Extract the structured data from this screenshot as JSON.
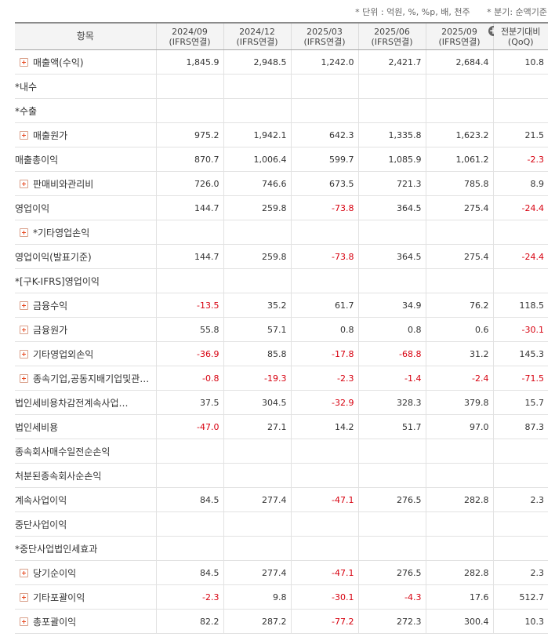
{
  "notes": {
    "unit": "* 단위 : 억원, %, %p, 배, 천주",
    "quarter": "* 분기: 순액기준"
  },
  "header": {
    "item": "항목",
    "columns": [
      {
        "period": "2024/09",
        "basis": "(IFRS연결)"
      },
      {
        "period": "2024/12",
        "basis": "(IFRS연결)"
      },
      {
        "period": "2025/03",
        "basis": "(IFRS연결)"
      },
      {
        "period": "2025/06",
        "basis": "(IFRS연결)"
      },
      {
        "period": "2025/09",
        "basis": "(IFRS연결)"
      }
    ],
    "last": {
      "line1": "전분기대비",
      "line2": "(QoQ)"
    },
    "expand_symbol": "+"
  },
  "rows": [
    {
      "label": "매출액(수익)",
      "expand": true,
      "indent": false,
      "values": [
        "1,845.9",
        "2,948.5",
        "1,242.0",
        "2,421.7",
        "2,684.4",
        "10.8"
      ]
    },
    {
      "label": "*내수",
      "expand": false,
      "indent": true,
      "values": [
        "",
        "",
        "",
        "",
        "",
        ""
      ]
    },
    {
      "label": "*수출",
      "expand": false,
      "indent": true,
      "values": [
        "",
        "",
        "",
        "",
        "",
        ""
      ]
    },
    {
      "label": "매출원가",
      "expand": true,
      "indent": false,
      "values": [
        "975.2",
        "1,942.1",
        "642.3",
        "1,335.8",
        "1,623.2",
        "21.5"
      ]
    },
    {
      "label": "매출총이익",
      "expand": false,
      "indent": true,
      "values": [
        "870.7",
        "1,006.4",
        "599.7",
        "1,085.9",
        "1,061.2",
        "-2.3"
      ]
    },
    {
      "label": "판매비와관리비",
      "expand": true,
      "indent": false,
      "values": [
        "726.0",
        "746.6",
        "673.5",
        "721.3",
        "785.8",
        "8.9"
      ]
    },
    {
      "label": "영업이익",
      "expand": false,
      "indent": true,
      "values": [
        "144.7",
        "259.8",
        "-73.8",
        "364.5",
        "275.4",
        "-24.4"
      ]
    },
    {
      "label": "*기타영업손익",
      "expand": true,
      "indent": false,
      "values": [
        "",
        "",
        "",
        "",
        "",
        ""
      ]
    },
    {
      "label": "영업이익(발표기준)",
      "expand": false,
      "indent": true,
      "values": [
        "144.7",
        "259.8",
        "-73.8",
        "364.5",
        "275.4",
        "-24.4"
      ]
    },
    {
      "label": "*[구K-IFRS]영업이익",
      "expand": false,
      "indent": true,
      "values": [
        "",
        "",
        "",
        "",
        "",
        ""
      ]
    },
    {
      "label": "금융수익",
      "expand": true,
      "indent": false,
      "values": [
        "-13.5",
        "35.2",
        "61.7",
        "34.9",
        "76.2",
        "118.5"
      ]
    },
    {
      "label": "금융원가",
      "expand": true,
      "indent": false,
      "values": [
        "55.8",
        "57.1",
        "0.8",
        "0.8",
        "0.6",
        "-30.1"
      ]
    },
    {
      "label": "기타영업외손익",
      "expand": true,
      "indent": false,
      "values": [
        "-36.9",
        "85.8",
        "-17.8",
        "-68.8",
        "31.2",
        "145.3"
      ]
    },
    {
      "label": "종속기업,공동지배기업및관…",
      "expand": true,
      "indent": false,
      "values": [
        "-0.8",
        "-19.3",
        "-2.3",
        "-1.4",
        "-2.4",
        "-71.5"
      ]
    },
    {
      "label": "법인세비용차감전계속사업…",
      "expand": false,
      "indent": true,
      "values": [
        "37.5",
        "304.5",
        "-32.9",
        "328.3",
        "379.8",
        "15.7"
      ]
    },
    {
      "label": "법인세비용",
      "expand": false,
      "indent": true,
      "values": [
        "-47.0",
        "27.1",
        "14.2",
        "51.7",
        "97.0",
        "87.3"
      ]
    },
    {
      "label": "종속회사매수일전순손익",
      "expand": false,
      "indent": true,
      "values": [
        "",
        "",
        "",
        "",
        "",
        ""
      ]
    },
    {
      "label": "처분된종속회사순손익",
      "expand": false,
      "indent": true,
      "values": [
        "",
        "",
        "",
        "",
        "",
        ""
      ]
    },
    {
      "label": "계속사업이익",
      "expand": false,
      "indent": true,
      "values": [
        "84.5",
        "277.4",
        "-47.1",
        "276.5",
        "282.8",
        "2.3"
      ]
    },
    {
      "label": "중단사업이익",
      "expand": false,
      "indent": true,
      "values": [
        "",
        "",
        "",
        "",
        "",
        ""
      ]
    },
    {
      "label": "*중단사업법인세효과",
      "expand": false,
      "indent": true,
      "values": [
        "",
        "",
        "",
        "",
        "",
        ""
      ]
    },
    {
      "label": "당기순이익",
      "expand": true,
      "indent": false,
      "values": [
        "84.5",
        "277.4",
        "-47.1",
        "276.5",
        "282.8",
        "2.3"
      ]
    },
    {
      "label": "기타포괄이익",
      "expand": true,
      "indent": false,
      "values": [
        "-2.3",
        "9.8",
        "-30.1",
        "-4.3",
        "17.6",
        "512.7"
      ]
    },
    {
      "label": "총포괄이익",
      "expand": true,
      "indent": false,
      "values": [
        "82.2",
        "287.2",
        "-77.2",
        "272.3",
        "300.4",
        "10.3"
      ]
    }
  ]
}
